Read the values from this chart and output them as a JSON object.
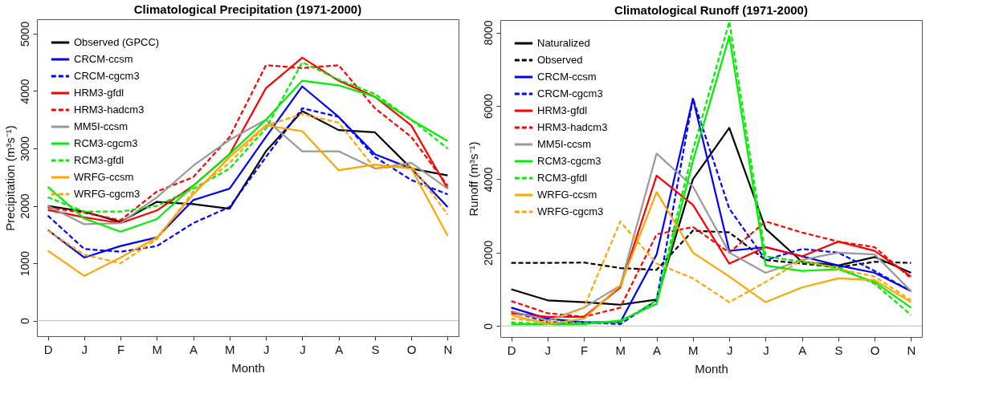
{
  "chart_data": [
    {
      "type": "line",
      "title": "Climatological Precipitation (1971-2000)",
      "xlabel": "Month",
      "ylabel": "Precipitation (m³s⁻¹)",
      "categories": [
        "D",
        "J",
        "F",
        "M",
        "A",
        "M",
        "J",
        "J",
        "A",
        "S",
        "O",
        "N"
      ],
      "ylim": [
        -270,
        5250
      ],
      "yticks": [
        0,
        1000,
        2000,
        3000,
        4000,
        5000
      ],
      "legend": "top left",
      "ref_lines": [
        {
          "axis": "y",
          "value": 0,
          "color": "#bbbbbb"
        }
      ],
      "series": [
        {
          "name": "Observed (GPCC)",
          "color": "#000000",
          "line_style": "solid",
          "values": [
            2000,
            1900,
            1720,
            2070,
            2030,
            1950,
            2950,
            3650,
            3320,
            3280,
            2650,
            2530
          ]
        },
        {
          "name": "CRCM-ccsm",
          "color": "#0000ff",
          "line_style": "solid",
          "values": [
            1580,
            1100,
            1300,
            1450,
            2100,
            2300,
            3200,
            4080,
            3550,
            2900,
            2650,
            1980
          ]
        },
        {
          "name": "CRCM-cgcm3",
          "color": "#0000ff",
          "line_style": "dashed",
          "values": [
            1830,
            1250,
            1200,
            1300,
            1700,
            1980,
            2850,
            3700,
            3550,
            2850,
            2450,
            2200
          ]
        },
        {
          "name": "HRM3-gfdl",
          "color": "#ff0000",
          "line_style": "solid",
          "values": [
            1930,
            1800,
            1700,
            1920,
            2350,
            2900,
            4050,
            4580,
            4180,
            3900,
            3400,
            2300
          ]
        },
        {
          "name": "HRM3-hadcm3",
          "color": "#ff0000",
          "line_style": "dashed",
          "values": [
            1970,
            1880,
            1750,
            2250,
            2500,
            3200,
            4450,
            4400,
            4450,
            3700,
            3200,
            2350
          ]
        },
        {
          "name": "MM5I-ccsm",
          "color": "#999999",
          "line_style": "solid",
          "values": [
            2000,
            1680,
            1700,
            2150,
            2700,
            3150,
            3500,
            2950,
            2950,
            2650,
            2750,
            2300
          ]
        },
        {
          "name": "RCM3-cgcm3",
          "color": "#00ee00",
          "line_style": "solid",
          "values": [
            2330,
            1780,
            1550,
            1770,
            2350,
            2900,
            3500,
            4180,
            4100,
            3900,
            3500,
            3130
          ]
        },
        {
          "name": "RCM3-gfdl",
          "color": "#00ee00",
          "line_style": "dashed",
          "values": [
            2150,
            1900,
            1900,
            2000,
            2300,
            2650,
            3350,
            4500,
            4200,
            3950,
            3500,
            3000
          ]
        },
        {
          "name": "WRFG-ccsm",
          "color": "#ffa500",
          "line_style": "solid",
          "values": [
            1220,
            780,
            1100,
            1450,
            2200,
            2850,
            3400,
            3300,
            2620,
            2720,
            2650,
            1480
          ]
        },
        {
          "name": "WRFG-cgcm3",
          "color": "#ffa500",
          "line_style": "dashed",
          "values": [
            1570,
            1150,
            1000,
            1420,
            2250,
            2750,
            3400,
            3600,
            3450,
            2650,
            2700,
            1850
          ]
        }
      ]
    },
    {
      "type": "line",
      "title": "Climatological Runoff (1971-2000)",
      "xlabel": "Month",
      "ylabel": "Runoff (m³s⁻¹)",
      "categories": [
        "D",
        "J",
        "F",
        "M",
        "A",
        "M",
        "J",
        "J",
        "A",
        "S",
        "O",
        "N"
      ],
      "ylim": [
        -300,
        8340
      ],
      "yticks": [
        0,
        2000,
        4000,
        6000,
        8000
      ],
      "legend": "top left",
      "ref_lines": [
        {
          "axis": "y",
          "value": 0,
          "color": "#bbbbbb"
        }
      ],
      "series": [
        {
          "name": "Naturalized",
          "color": "#000000",
          "line_style": "solid",
          "values": [
            1000,
            700,
            650,
            580,
            720,
            4000,
            5400,
            2650,
            1750,
            1650,
            1880,
            1450
          ]
        },
        {
          "name": "Observed",
          "color": "#000000",
          "line_style": "dashed",
          "values": [
            1720,
            1720,
            1730,
            1580,
            1530,
            2600,
            2550,
            1800,
            1700,
            1600,
            1750,
            1720
          ]
        },
        {
          "name": "CRCM-ccsm",
          "color": "#0000ff",
          "line_style": "solid",
          "values": [
            500,
            200,
            100,
            100,
            1950,
            6200,
            2050,
            2150,
            1900,
            1650,
            1450,
            950
          ]
        },
        {
          "name": "CRCM-cgcm3",
          "color": "#0000ff",
          "line_style": "dashed",
          "values": [
            400,
            100,
            100,
            50,
            700,
            6200,
            3200,
            1800,
            2100,
            2000,
            1500,
            950
          ]
        },
        {
          "name": "HRM3-gfdl",
          "color": "#ff0000",
          "line_style": "solid",
          "values": [
            350,
            250,
            250,
            1050,
            4100,
            3300,
            1700,
            2150,
            1900,
            2300,
            2050,
            1350
          ]
        },
        {
          "name": "HRM3-hadcm3",
          "color": "#ff0000",
          "line_style": "dashed",
          "values": [
            680,
            350,
            250,
            500,
            2500,
            2700,
            2000,
            2850,
            2550,
            2300,
            2150,
            1300
          ]
        },
        {
          "name": "MM5I-ccsm",
          "color": "#999999",
          "line_style": "solid",
          "values": [
            400,
            150,
            500,
            1100,
            4700,
            3800,
            2000,
            1450,
            1800,
            2000,
            1950,
            950
          ]
        },
        {
          "name": "RCM3-cgcm3",
          "color": "#00ee00",
          "line_style": "solid",
          "values": [
            50,
            50,
            50,
            150,
            600,
            4500,
            7900,
            1650,
            1500,
            1550,
            1200,
            500
          ]
        },
        {
          "name": "RCM3-gfdl",
          "color": "#00ee00",
          "line_style": "dashed",
          "values": [
            100,
            50,
            100,
            100,
            700,
            4800,
            8300,
            1900,
            1750,
            1600,
            1150,
            300
          ]
        },
        {
          "name": "WRFG-ccsm",
          "color": "#ffa500",
          "line_style": "solid",
          "values": [
            300,
            50,
            200,
            1100,
            3650,
            2000,
            1350,
            650,
            1050,
            1300,
            1250,
            650
          ]
        },
        {
          "name": "WRFG-cgcm3",
          "color": "#ffa500",
          "line_style": "dashed",
          "values": [
            200,
            100,
            500,
            2850,
            1700,
            1300,
            650,
            1200,
            1800,
            1550,
            1350,
            700
          ]
        }
      ]
    }
  ]
}
